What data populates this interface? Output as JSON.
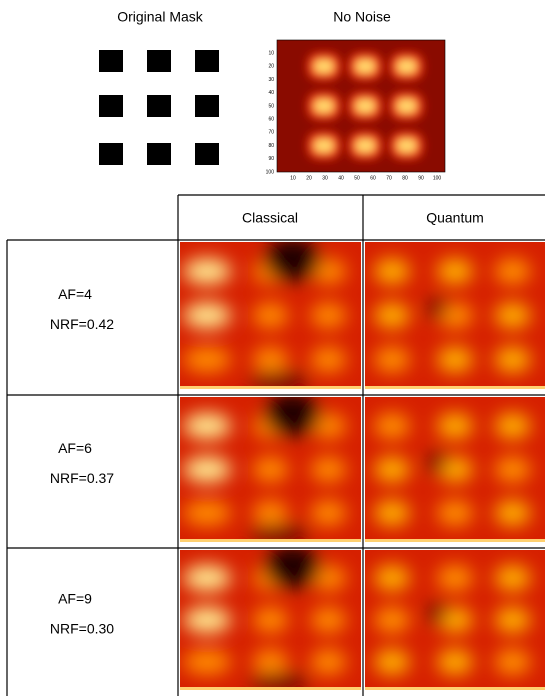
{
  "header": {
    "original_mask_title": "Original Mask",
    "no_noise_title": "No Noise"
  },
  "no_noise_axes": {
    "xticks": [
      10,
      20,
      30,
      40,
      50,
      60,
      70,
      80,
      90,
      100
    ],
    "yticks": [
      10,
      20,
      30,
      40,
      50,
      60,
      70,
      80,
      90,
      100
    ]
  },
  "table": {
    "columns": [
      "Classical",
      "Quantum"
    ],
    "rows": [
      {
        "af": "AF=4",
        "nrf": "NRF=0.42"
      },
      {
        "af": "AF=6",
        "nrf": "NRF=0.37"
      },
      {
        "af": "AF=9",
        "nrf": "NRF=0.30"
      }
    ]
  }
}
